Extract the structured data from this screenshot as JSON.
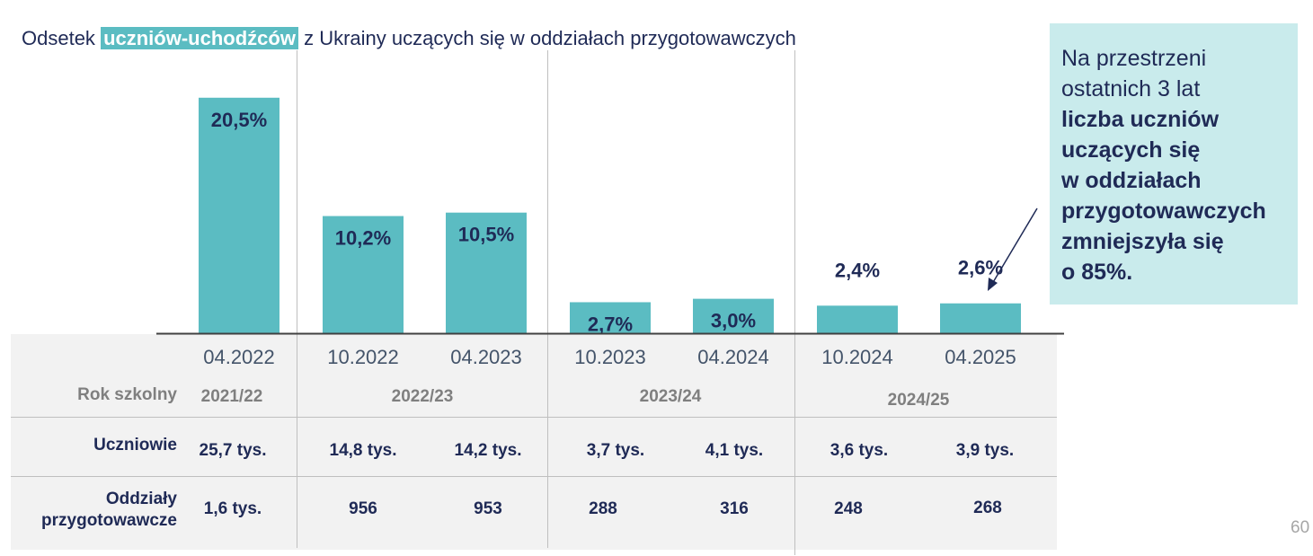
{
  "title": {
    "prefix": "Odsetek",
    "highlight": "uczniów-uchodźców",
    "suffix": "z Ukrainy uczących się w oddziałach przygotowawczych"
  },
  "callout": {
    "normal_lines": [
      "Na przestrzeni",
      "ostatnich 3 lat"
    ],
    "bold_lines": [
      "liczba uczniów",
      "uczących się",
      "w oddziałach",
      "przygotowawczych",
      "zmniejszyła się",
      "o 85%."
    ]
  },
  "chart_data": {
    "type": "bar",
    "categories": [
      "04.2022",
      "10.2022",
      "04.2023",
      "10.2023",
      "04.2024",
      "10.2024",
      "04.2025"
    ],
    "values": [
      20.5,
      10.2,
      10.5,
      2.7,
      3.0,
      2.4,
      2.6
    ],
    "data_labels": [
      "20,5%",
      "10,2%",
      "10,5%",
      "2,7%",
      "3,0%",
      "2,4%",
      "2,6%"
    ],
    "title": "Odsetek uczniów-uchodźców z Ukrainy uczących się w oddziałach przygotowawczych",
    "ylim": [
      0,
      21.5
    ],
    "color": "#5bbcc2",
    "label_color": "#1f2a56"
  },
  "table": {
    "school_year_label": "Rok szkolny",
    "school_years": [
      "2021/22",
      "2022/23",
      "2023/24",
      "2024/25"
    ],
    "rows": [
      {
        "label_lines": [
          "Uczniowie"
        ],
        "values": [
          "25,7 tys.",
          "14,8 tys.",
          "14,2 tys.",
          "3,7 tys.",
          "4,1 tys.",
          "3,6 tys.",
          "3,9 tys."
        ]
      },
      {
        "label_lines": [
          "Oddziały",
          "przygotowawcze"
        ],
        "values": [
          "1,6 tys.",
          "956",
          "953",
          "288",
          "316",
          "248",
          "268"
        ]
      }
    ]
  },
  "page_number": "60"
}
